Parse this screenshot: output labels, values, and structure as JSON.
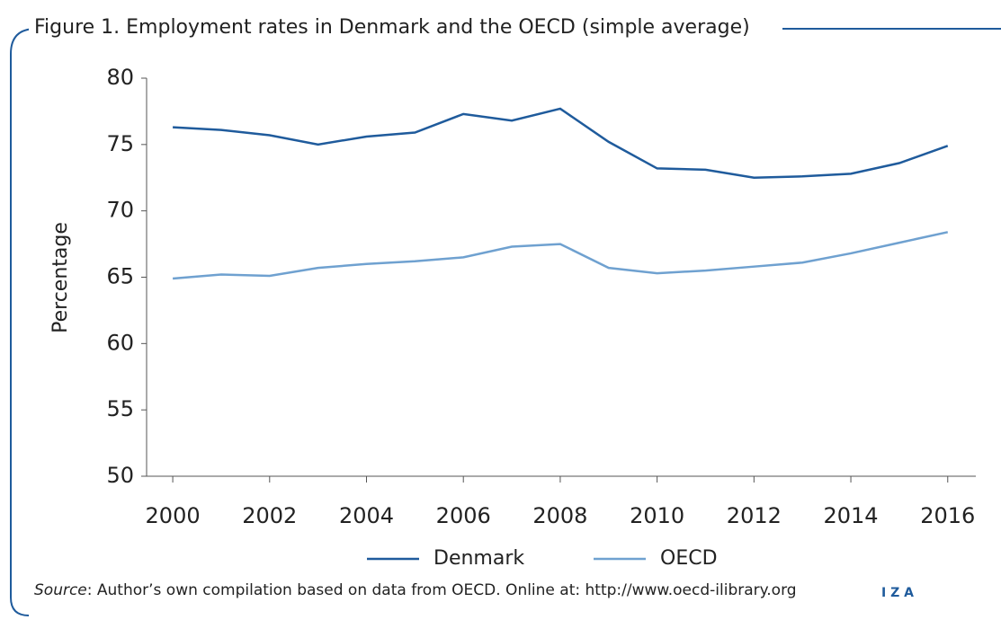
{
  "chart_data": {
    "type": "line",
    "title": "Figure 1. Employment rates in Denmark and the OECD (simple average)",
    "y_label": "Percentage",
    "x": [
      2000,
      2001,
      2002,
      2003,
      2004,
      2005,
      2006,
      2007,
      2008,
      2009,
      2010,
      2011,
      2012,
      2013,
      2014,
      2015,
      2016
    ],
    "series": [
      {
        "name": "Denmark",
        "color": "#1f5b9c",
        "values": [
          76.3,
          76.1,
          75.7,
          75.0,
          75.6,
          75.9,
          77.3,
          76.8,
          77.7,
          75.2,
          73.2,
          73.1,
          72.5,
          72.6,
          72.8,
          73.6,
          74.9
        ]
      },
      {
        "name": "OECD",
        "color": "#6fa1d0",
        "values": [
          64.9,
          65.2,
          65.1,
          65.7,
          66.0,
          66.2,
          66.5,
          67.3,
          67.5,
          65.7,
          65.3,
          65.5,
          65.8,
          66.1,
          66.8,
          67.6,
          68.4
        ]
      }
    ],
    "xlim": [
      1999.46,
      2016.58
    ],
    "xticks": [
      2000,
      2002,
      2004,
      2006,
      2008,
      2010,
      2012,
      2014,
      2016
    ],
    "ylim": [
      50,
      80
    ],
    "yticks": [
      50,
      55,
      60,
      65,
      70,
      75,
      80
    ],
    "legend": "bottom",
    "source_label": "Source",
    "source_text": ": Author’s own compilation based on data from OECD. Online at: http://www.oecd-ilibrary.org",
    "logo": "I Z A"
  }
}
